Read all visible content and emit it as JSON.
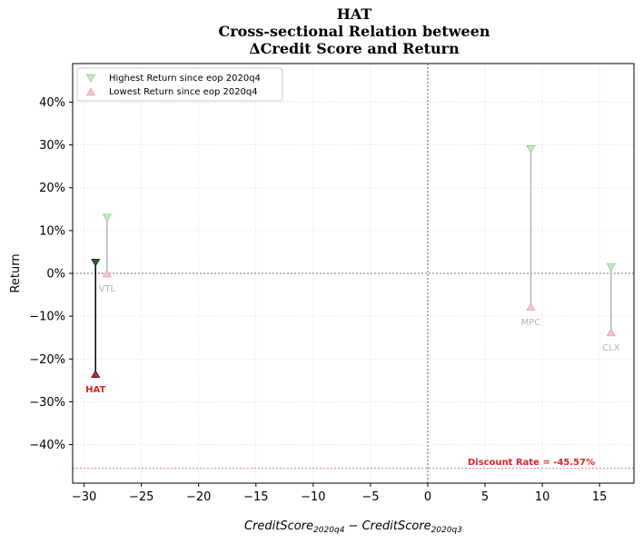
{
  "chart_data": {
    "type": "scatter",
    "title": [
      "HAT",
      "Cross-sectional Relation between",
      "ΔCredit Score and Return"
    ],
    "xlabel": "CreditScore",
    "xlabel_sub1": "2020q4",
    "xlabel_mid": " − CreditScore",
    "xlabel_sub2": "2020q3",
    "ylabel": "Return",
    "xlim": [
      -31,
      18
    ],
    "ylim": [
      -49,
      49
    ],
    "xticks": [
      -30,
      -25,
      -20,
      -15,
      -10,
      -5,
      0,
      5,
      10,
      15
    ],
    "xtick_labels": [
      "−30",
      "−25",
      "−20",
      "−15",
      "−10",
      "−5",
      "0",
      "5",
      "10",
      "15"
    ],
    "yticks": [
      -40,
      -30,
      -20,
      -10,
      0,
      10,
      20,
      30,
      40
    ],
    "ytick_labels": [
      "−40%",
      "−30%",
      "−20%",
      "−10%",
      "0%",
      "10%",
      "20%",
      "30%",
      "40%"
    ],
    "grid": true,
    "legend_position": "top-left",
    "series": [
      {
        "name": "Highest Return since eop 2020q4",
        "marker": "triangle-down",
        "color": "#8fcc8f"
      },
      {
        "name": "Lowest Return since eop 2020q4",
        "marker": "triangle-up",
        "color": "#e8a0a8"
      }
    ],
    "points": [
      {
        "label": "HAT",
        "x": -29,
        "high": 2.5,
        "low": -23.5,
        "highlight": true
      },
      {
        "label": "VTL",
        "x": -28,
        "high": 13,
        "low": 0,
        "highlight": false
      },
      {
        "label": "MPC",
        "x": 9,
        "high": 29,
        "low": -7.8,
        "highlight": false
      },
      {
        "label": "CLX",
        "x": 16,
        "high": 1.5,
        "low": -13.8,
        "highlight": false
      }
    ],
    "discount_rate": -45.57,
    "discount_label": "Discount Rate = -45.57%",
    "colors": {
      "highlight_line": "#000000",
      "highlight_high": "#1a6e1a",
      "highlight_low": "#d62728",
      "faded_line": "#b5b5b5",
      "faded_label": "#b5b5b5",
      "discount": "#d62728"
    }
  }
}
